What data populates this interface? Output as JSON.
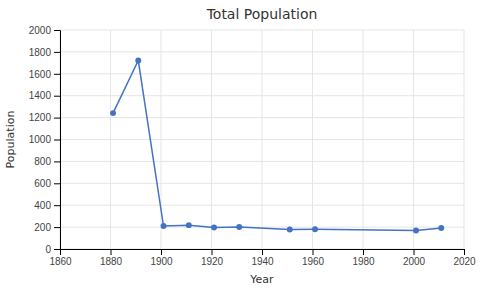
{
  "chart_data": {
    "type": "line",
    "title": "Total Population",
    "xlabel": "Year",
    "ylabel": "Population",
    "x": [
      1881,
      1891,
      1901,
      1911,
      1921,
      1931,
      1951,
      1961,
      2001,
      2011
    ],
    "values": [
      1241,
      1721,
      210,
      218,
      197,
      200,
      178,
      180,
      169,
      191
    ],
    "color": "#4472C4",
    "marker": "circle",
    "xlim": [
      1860,
      2020
    ],
    "xticks": [
      1860,
      1880,
      1900,
      1920,
      1940,
      1960,
      1980,
      2000,
      2020
    ],
    "ylim": [
      0,
      2000
    ],
    "yticks": [
      0,
      200,
      400,
      600,
      800,
      1000,
      1200,
      1400,
      1600,
      1800,
      2000
    ],
    "grid": true
  }
}
